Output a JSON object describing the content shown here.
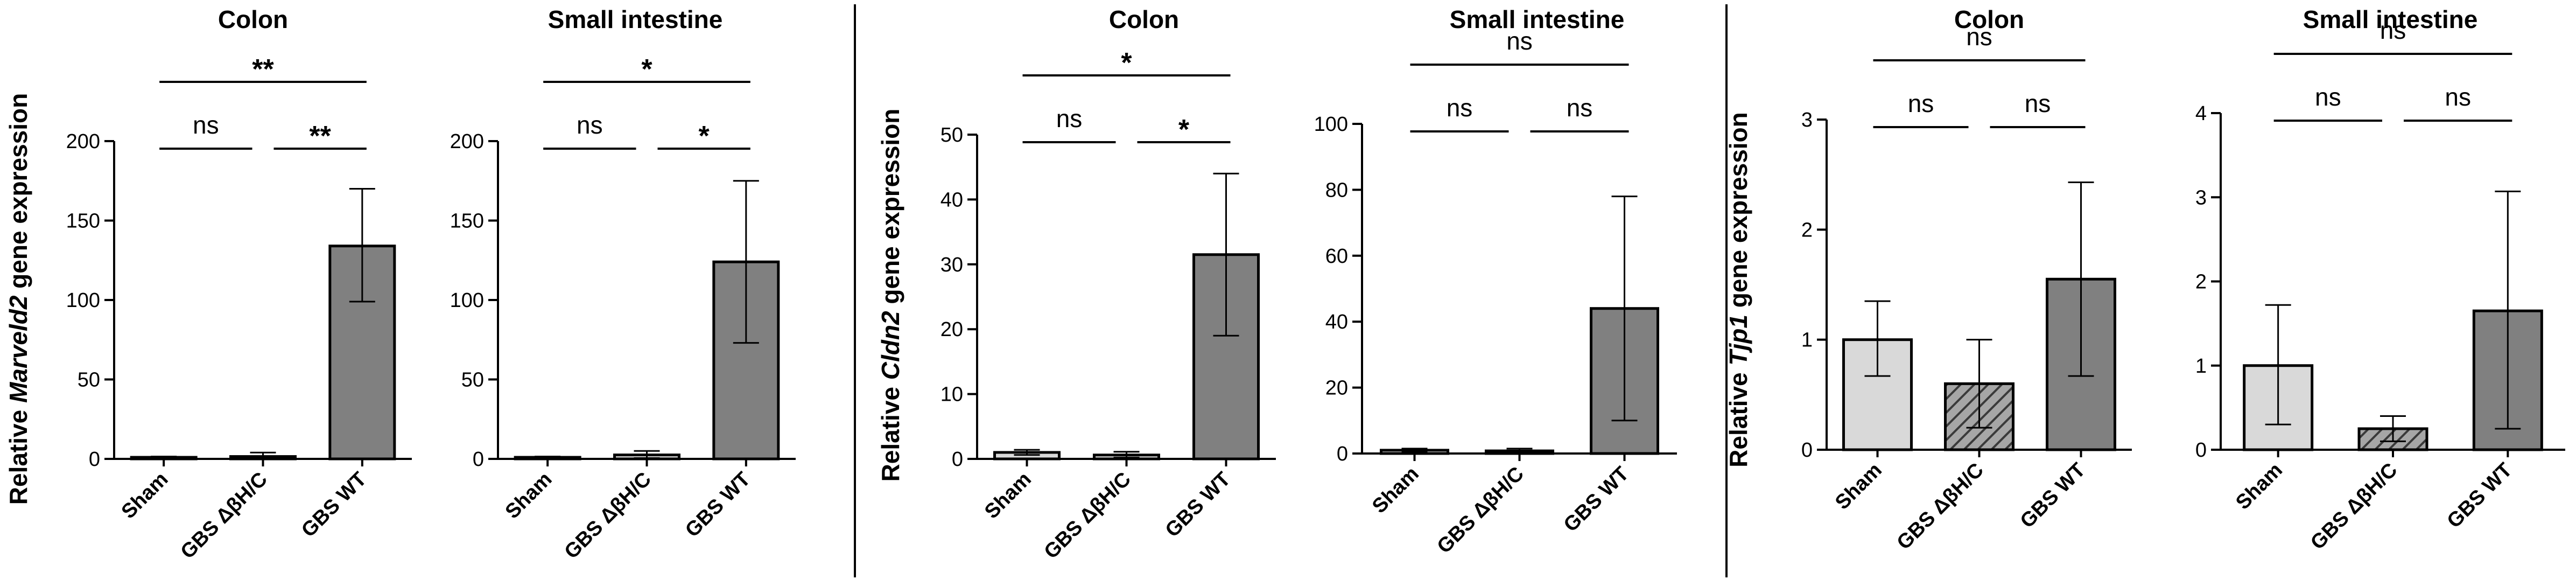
{
  "chart_data": [
    {
      "type": "bar",
      "title": "Colon",
      "ylabel": {
        "pre": "Relative ",
        "gene": "Marveld2",
        "post": " gene expression"
      },
      "ylim": [
        0,
        200
      ],
      "yticks": [
        0,
        50,
        100,
        150,
        200
      ],
      "categories": [
        "Sham",
        "GBS ΔβH/C",
        "GBS WT"
      ],
      "values": [
        1,
        1.5,
        134
      ],
      "error_low": [
        0.5,
        0.5,
        99
      ],
      "error_high": [
        1.5,
        4,
        170
      ],
      "fills": [
        "#d9d9d9",
        "#d9d9d9",
        "#808080"
      ],
      "hatched": [
        false,
        false,
        false
      ],
      "significance": [
        {
          "from": 0,
          "to": 1,
          "label": "ns",
          "level": 1
        },
        {
          "from": 1,
          "to": 2,
          "label": "**",
          "level": 1
        },
        {
          "from": 0,
          "to": 2,
          "label": "**",
          "level": 2
        }
      ]
    },
    {
      "type": "bar",
      "title": "Small intestine",
      "ylabel": null,
      "ylim": [
        0,
        200
      ],
      "yticks": [
        0,
        50,
        100,
        150,
        200
      ],
      "categories": [
        "Sham",
        "GBS ΔβH/C",
        "GBS WT"
      ],
      "values": [
        1,
        2.5,
        124
      ],
      "error_low": [
        0.5,
        0.5,
        73
      ],
      "error_high": [
        1.5,
        5,
        175
      ],
      "fills": [
        "#d9d9d9",
        "#d9d9d9",
        "#808080"
      ],
      "hatched": [
        false,
        false,
        false
      ],
      "significance": [
        {
          "from": 0,
          "to": 1,
          "label": "ns",
          "level": 1
        },
        {
          "from": 1,
          "to": 2,
          "label": "*",
          "level": 1
        },
        {
          "from": 0,
          "to": 2,
          "label": "*",
          "level": 2
        }
      ]
    },
    {
      "type": "bar",
      "title": "Colon",
      "ylabel": {
        "pre": "Relative ",
        "gene": "Cldn2",
        "post": " gene expression"
      },
      "ylim": [
        0,
        50
      ],
      "yticks": [
        0,
        10,
        20,
        30,
        40,
        50
      ],
      "categories": [
        "Sham",
        "GBS ΔβH/C",
        "GBS WT"
      ],
      "values": [
        1,
        0.6,
        31.5
      ],
      "error_low": [
        0.6,
        0.2,
        19
      ],
      "error_high": [
        1.4,
        1.1,
        44
      ],
      "fills": [
        "#d9d9d9",
        "#d9d9d9",
        "#808080"
      ],
      "hatched": [
        false,
        false,
        false
      ],
      "significance": [
        {
          "from": 0,
          "to": 1,
          "label": "ns",
          "level": 1
        },
        {
          "from": 1,
          "to": 2,
          "label": "*",
          "level": 1
        },
        {
          "from": 0,
          "to": 2,
          "label": "*",
          "level": 2
        }
      ]
    },
    {
      "type": "bar",
      "title": "Small intestine",
      "ylabel": null,
      "ylim": [
        0,
        100
      ],
      "yticks": [
        0,
        20,
        40,
        60,
        80,
        100
      ],
      "categories": [
        "Sham",
        "GBS ΔβH/C",
        "GBS WT"
      ],
      "values": [
        1,
        0.8,
        44
      ],
      "error_low": [
        0.5,
        0.3,
        10
      ],
      "error_high": [
        1.5,
        1.5,
        78
      ],
      "fills": [
        "#d9d9d9",
        "#d9d9d9",
        "#808080"
      ],
      "hatched": [
        false,
        false,
        false
      ],
      "significance": [
        {
          "from": 0,
          "to": 1,
          "label": "ns",
          "level": 1
        },
        {
          "from": 1,
          "to": 2,
          "label": "ns",
          "level": 1
        },
        {
          "from": 0,
          "to": 2,
          "label": "ns",
          "level": 2
        }
      ]
    },
    {
      "type": "bar",
      "title": "Colon",
      "ylabel": {
        "pre": "Relative ",
        "gene": "Tjp1",
        "post": " gene expression"
      },
      "ylim": [
        0,
        3
      ],
      "yticks": [
        0,
        1,
        2,
        3
      ],
      "categories": [
        "Sham",
        "GBS ΔβH/C",
        "GBS WT"
      ],
      "values": [
        1.0,
        0.6,
        1.55
      ],
      "error_low": [
        0.67,
        0.2,
        0.67
      ],
      "error_high": [
        1.35,
        1.0,
        2.43
      ],
      "fills": [
        "#d9d9d9",
        "#a6a6a6",
        "#808080"
      ],
      "hatched": [
        false,
        true,
        false
      ],
      "significance": [
        {
          "from": 0,
          "to": 1,
          "label": "ns",
          "level": 1
        },
        {
          "from": 1,
          "to": 2,
          "label": "ns",
          "level": 1
        },
        {
          "from": 0,
          "to": 2,
          "label": "ns",
          "level": 2
        }
      ]
    },
    {
      "type": "bar",
      "title": "Small intestine",
      "ylabel": null,
      "ylim": [
        0,
        4
      ],
      "yticks": [
        0,
        1,
        2,
        3,
        4
      ],
      "categories": [
        "Sham",
        "GBS ΔβH/C",
        "GBS WT"
      ],
      "values": [
        1.0,
        0.25,
        1.65
      ],
      "error_low": [
        0.3,
        0.1,
        0.25
      ],
      "error_high": [
        1.72,
        0.4,
        3.07
      ],
      "fills": [
        "#d9d9d9",
        "#a6a6a6",
        "#808080"
      ],
      "hatched": [
        false,
        true,
        false
      ],
      "significance": [
        {
          "from": 0,
          "to": 1,
          "label": "ns",
          "level": 1
        },
        {
          "from": 1,
          "to": 2,
          "label": "ns",
          "level": 1
        },
        {
          "from": 0,
          "to": 2,
          "label": "ns",
          "level": 2
        }
      ]
    }
  ]
}
